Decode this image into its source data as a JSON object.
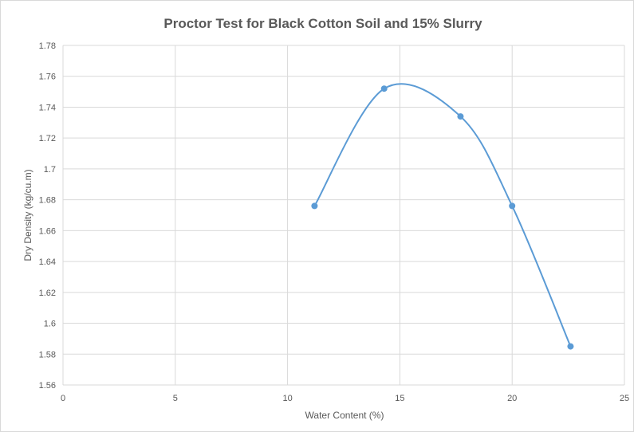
{
  "chart_data": {
    "type": "scatter",
    "title": "Proctor Test for Black Cotton Soil and 15% Slurry",
    "xlabel": "Water Content (%)",
    "ylabel": "Dry Density (kg/cu.m)",
    "xlim": [
      0,
      25
    ],
    "ylim": [
      1.56,
      1.78
    ],
    "xticks": [
      "0",
      "5",
      "10",
      "15",
      "20",
      "25"
    ],
    "yticks": [
      "1.56",
      "1.58",
      "1.6",
      "1.62",
      "1.64",
      "1.66",
      "1.68",
      "1.7",
      "1.72",
      "1.74",
      "1.76",
      "1.78"
    ],
    "grid": true,
    "smooth_line": true,
    "series": [
      {
        "x": [
          11.2,
          14.3,
          17.7,
          20.0,
          22.6
        ],
        "y": [
          1.676,
          1.752,
          1.734,
          1.676,
          1.585
        ],
        "color": "#5b9bd5"
      }
    ]
  }
}
